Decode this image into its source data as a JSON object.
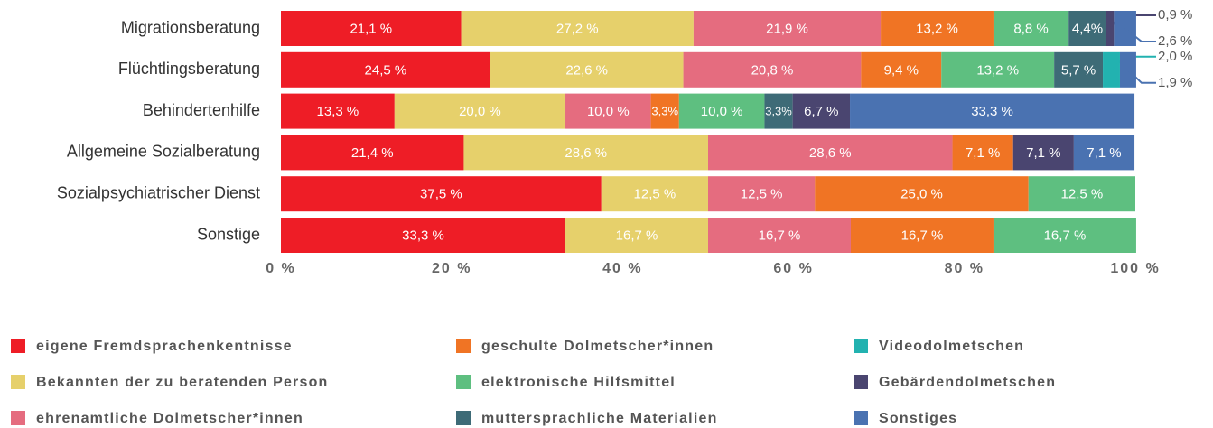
{
  "chart_data": {
    "type": "stacked-bar-horizontal",
    "categories": [
      "Migrationsberatung",
      "Flüchtlingsberatung",
      "Behindertenhilfe",
      "Allgemeine Sozialberatung",
      "Sozialpsychiatrischer Dienst",
      "Sonstige"
    ],
    "xlim": [
      0,
      100
    ],
    "xticks": [
      {
        "value": 0,
        "label": "0 %"
      },
      {
        "value": 20,
        "label": "20 %"
      },
      {
        "value": 40,
        "label": "40 %"
      },
      {
        "value": 60,
        "label": "60 %"
      },
      {
        "value": 80,
        "label": "80 %"
      },
      {
        "value": 100,
        "label": "100 %"
      }
    ],
    "series": [
      {
        "name": "eigene Fremdsprachenkentnisse",
        "color": "#ee1d26",
        "values": [
          21.1,
          24.5,
          13.3,
          21.4,
          37.5,
          33.3
        ],
        "value_labels": [
          "21,1 %",
          "24,5 %",
          "13,3 %",
          "21,4 %",
          "37,5 %",
          "33,3 %"
        ]
      },
      {
        "name": "Bekannten der zu beratenden Person",
        "color": "#e6d06b",
        "values": [
          27.2,
          22.6,
          20.0,
          28.6,
          12.5,
          16.7
        ],
        "value_labels": [
          "27,2 %",
          "22,6 %",
          "20,0 %",
          "28,6 %",
          "12,5 %",
          "16,7 %"
        ]
      },
      {
        "name": "ehrenamtliche Dolmetscher*innen",
        "color": "#e56c7f",
        "values": [
          21.9,
          20.8,
          10.0,
          28.6,
          12.5,
          16.7
        ],
        "value_labels": [
          "21,9 %",
          "20,8 %",
          "10,0 %",
          "28,6 %",
          "12,5 %",
          "16,7 %"
        ]
      },
      {
        "name": "geschulte Dolmetscher*innen",
        "color": "#f07424",
        "values": [
          13.2,
          9.4,
          3.3,
          7.1,
          25.0,
          16.7
        ],
        "value_labels": [
          "13,2 %",
          "9,4 %",
          "3,3%",
          "7,1 %",
          "25,0 %",
          "16,7 %"
        ]
      },
      {
        "name": "elektronische Hilfsmittel",
        "color": "#5ebf80",
        "values": [
          8.8,
          13.2,
          10.0,
          null,
          12.5,
          16.7
        ],
        "value_labels": [
          "8,8 %",
          "13,2 %",
          "10,0 %",
          null,
          "12,5 %",
          "16,7 %"
        ]
      },
      {
        "name": "muttersprachliche Materialien",
        "color": "#3e6b77",
        "values": [
          4.4,
          5.7,
          3.3,
          null,
          null,
          null
        ],
        "value_labels": [
          "4,4%",
          "5,7 %",
          "3,3%",
          null,
          null,
          null
        ]
      },
      {
        "name": "Videodolmetschen",
        "color": "#22b2b0",
        "values": [
          null,
          2.0,
          null,
          null,
          null,
          null
        ],
        "value_labels": [
          null,
          "2,0 %",
          null,
          null,
          null,
          null
        ]
      },
      {
        "name": "Gebärdendolmetschen",
        "color": "#4a4570",
        "values": [
          0.9,
          null,
          6.7,
          7.1,
          null,
          null
        ],
        "value_labels": [
          "0,9 %",
          null,
          "6,7 %",
          "7,1 %",
          null,
          null
        ]
      },
      {
        "name": "Sonstiges",
        "color": "#4a72b1",
        "values": [
          2.6,
          1.9,
          33.3,
          7.1,
          null,
          null
        ],
        "value_labels": [
          "2,6 %",
          "1,9 %",
          "33,3 %",
          "7,1 %",
          null,
          null
        ]
      }
    ]
  }
}
